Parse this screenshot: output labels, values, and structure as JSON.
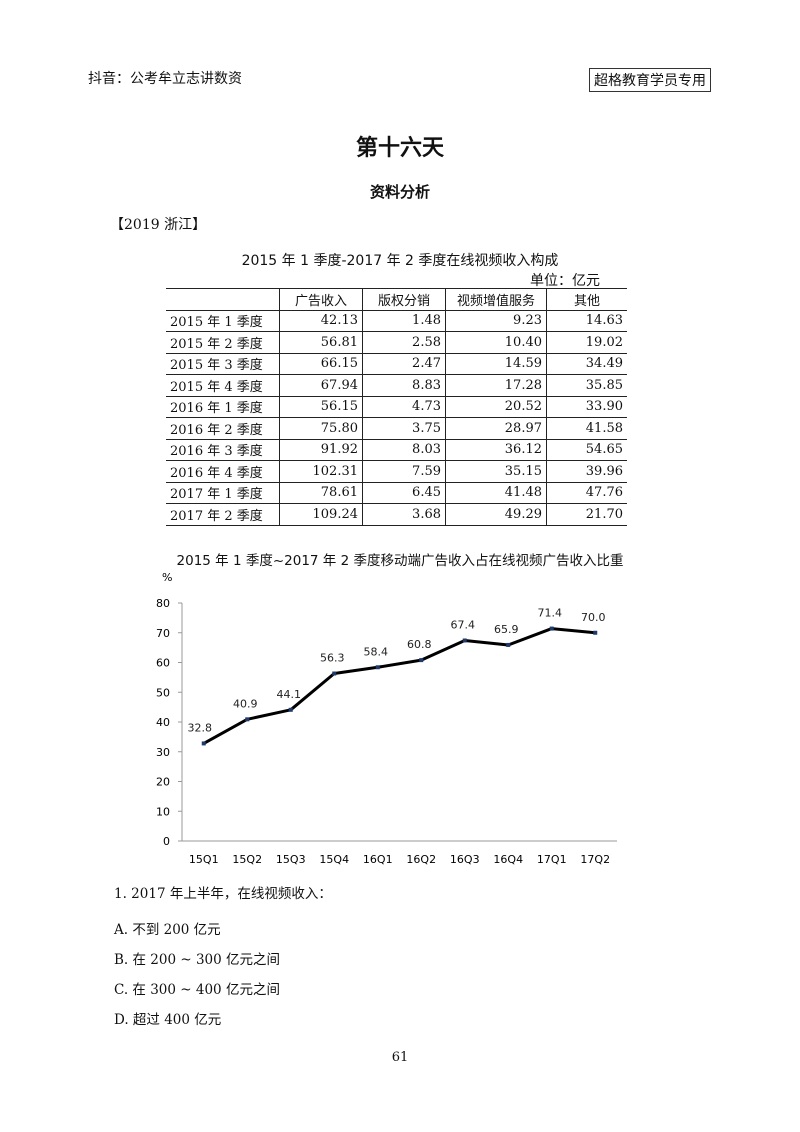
{
  "header": {
    "left": "抖音：公考牟立志讲数资",
    "right": "超格教育学员专用"
  },
  "title": "第十六天",
  "subtitle": "资料分析",
  "source": "【2019 浙江】",
  "table": {
    "title": "2015 年 1 季度-2017 年 2 季度在线视频收入构成",
    "unit": "单位：亿元",
    "columns": [
      "",
      "广告收入",
      "版权分销",
      "视频增值服务",
      "其他"
    ],
    "rows": [
      [
        "2015 年 1 季度",
        "42.13",
        "1.48",
        "9.23",
        "14.63"
      ],
      [
        "2015 年 2 季度",
        "56.81",
        "2.58",
        "10.40",
        "19.02"
      ],
      [
        "2015 年 3 季度",
        "66.15",
        "2.47",
        "14.59",
        "34.49"
      ],
      [
        "2015 年 4 季度",
        "67.94",
        "8.83",
        "17.28",
        "35.85"
      ],
      [
        "2016 年 1 季度",
        "56.15",
        "4.73",
        "20.52",
        "33.90"
      ],
      [
        "2016 年 2 季度",
        "75.80",
        "3.75",
        "28.97",
        "41.58"
      ],
      [
        "2016 年 3 季度",
        "91.92",
        "8.03",
        "36.12",
        "54.65"
      ],
      [
        "2016 年 4 季度",
        "102.31",
        "7.59",
        "35.15",
        "39.96"
      ],
      [
        "2017 年 1 季度",
        "78.61",
        "6.45",
        "41.48",
        "47.76"
      ],
      [
        "2017 年 2 季度",
        "109.24",
        "3.68",
        "49.29",
        "21.70"
      ]
    ]
  },
  "chart_data": {
    "type": "line",
    "title": "2015 年 1 季度~2017 年 2 季度移动端广告收入占在线视频广告收入比重",
    "ylabel": "%",
    "xlabel": "",
    "categories": [
      "15Q1",
      "15Q2",
      "15Q3",
      "15Q4",
      "16Q1",
      "16Q2",
      "16Q3",
      "16Q4",
      "17Q1",
      "17Q2"
    ],
    "values": [
      32.8,
      40.9,
      44.1,
      56.3,
      58.4,
      60.8,
      67.4,
      65.9,
      71.4,
      70.0
    ],
    "value_labels": [
      "32.8",
      "40.9",
      "44.1",
      "56.3",
      "58.4",
      "60.8",
      "67.4",
      "65.9",
      "71.4",
      "70.0"
    ],
    "yticks": [
      "0",
      "10",
      "20",
      "30",
      "40",
      "50",
      "60",
      "70",
      "80"
    ],
    "ylim": [
      0,
      80
    ],
    "grid": false,
    "legend": "none",
    "line_color": "#000000",
    "marker_color": "#1f3a6b"
  },
  "question": {
    "stem": "1. 2017 年上半年，在线视频收入：",
    "options": [
      "A. 不到 200 亿元",
      "B. 在 200 ~ 300 亿元之间",
      "C. 在 300 ~ 400 亿元之间",
      "D. 超过 400 亿元"
    ]
  },
  "page_number": "61"
}
